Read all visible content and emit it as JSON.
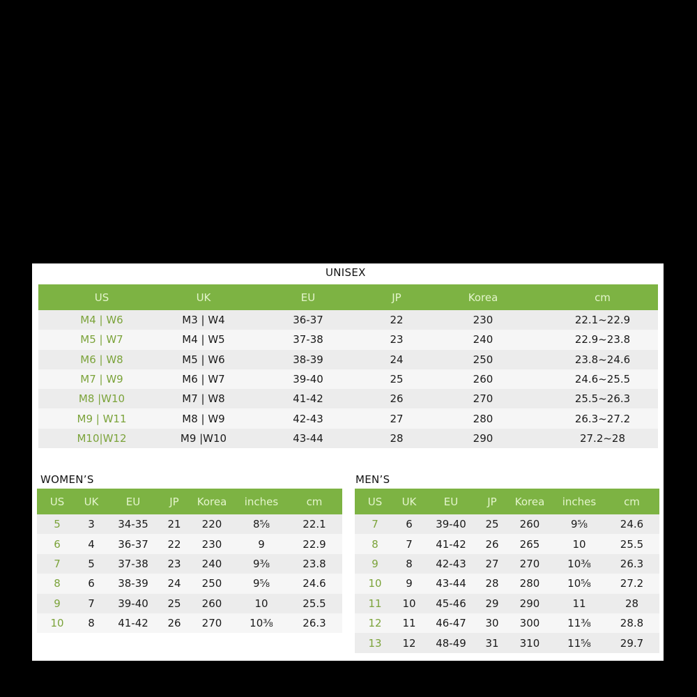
{
  "unisex": {
    "title": "UNISEX",
    "headers": [
      "US",
      "UK",
      "EU",
      "JP",
      "Korea",
      "cm"
    ],
    "rows": [
      [
        "M4 | W6",
        "M3 | W4",
        "36-37",
        "22",
        "230",
        "22.1~22.9"
      ],
      [
        "M5 | W7",
        "M4 | W5",
        "37-38",
        "23",
        "240",
        "22.9~23.8"
      ],
      [
        "M6 | W8",
        "M5 | W6",
        "38-39",
        "24",
        "250",
        "23.8~24.6"
      ],
      [
        "M7 | W9",
        "M6 | W7",
        "39-40",
        "25",
        "260",
        "24.6~25.5"
      ],
      [
        "M8 |W10",
        "M7 | W8",
        "41-42",
        "26",
        "270",
        "25.5~26.3"
      ],
      [
        "M9 | W11",
        "M8 | W9",
        "42-43",
        "27",
        "280",
        "26.3~27.2"
      ],
      [
        "M10|W12",
        "M9 |W10",
        "43-44",
        "28",
        "290",
        "27.2~28"
      ]
    ]
  },
  "women": {
    "title": "WOMEN’S",
    "headers": [
      "US",
      "UK",
      "EU",
      "JP",
      "Korea",
      "inches",
      "cm"
    ],
    "rows": [
      [
        "5",
        "3",
        "34-35",
        "21",
        "220",
        "8⅝",
        "22.1"
      ],
      [
        "6",
        "4",
        "36-37",
        "22",
        "230",
        "9",
        "22.9"
      ],
      [
        "7",
        "5",
        "37-38",
        "23",
        "240",
        "9⅜",
        "23.8"
      ],
      [
        "8",
        "6",
        "38-39",
        "24",
        "250",
        "9⅝",
        "24.6"
      ],
      [
        "9",
        "7",
        "39-40",
        "25",
        "260",
        "10",
        "25.5"
      ],
      [
        "10",
        "8",
        "41-42",
        "26",
        "270",
        "10⅜",
        "26.3"
      ]
    ]
  },
  "men": {
    "title": "MEN’S",
    "headers": [
      "US",
      "UK",
      "EU",
      "JP",
      "Korea",
      "inches",
      "cm"
    ],
    "rows": [
      [
        "7",
        "6",
        "39-40",
        "25",
        "260",
        "9⅝",
        "24.6"
      ],
      [
        "8",
        "7",
        "41-42",
        "26",
        "265",
        "10",
        "25.5"
      ],
      [
        "9",
        "8",
        "42-43",
        "27",
        "270",
        "10⅜",
        "26.3"
      ],
      [
        "10",
        "9",
        "43-44",
        "28",
        "280",
        "10⅝",
        "27.2"
      ],
      [
        "11",
        "10",
        "45-46",
        "29",
        "290",
        "11",
        "28"
      ],
      [
        "12",
        "11",
        "46-47",
        "30",
        "300",
        "11⅜",
        "28.8"
      ],
      [
        "13",
        "12",
        "48-49",
        "31",
        "310",
        "11⅝",
        "29.7"
      ]
    ]
  },
  "colors": {
    "header_green": "#7db343",
    "us_text_green": "#7ba33a"
  }
}
